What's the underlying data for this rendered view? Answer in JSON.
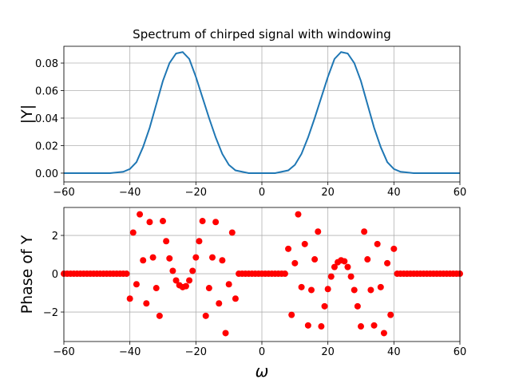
{
  "chart_data": [
    {
      "type": "line",
      "title": "Spectrum of chirped signal with windowing",
      "ylabel": "|Y|",
      "color": "#1f77b4",
      "x": [
        -60,
        -58,
        -56,
        -54,
        -52,
        -50,
        -48,
        -46,
        -44,
        -42,
        -40,
        -38,
        -36,
        -34,
        -32,
        -30,
        -28,
        -26,
        -24,
        -22,
        -20,
        -18,
        -16,
        -14,
        -12,
        -10,
        -8,
        -6,
        -4,
        -2,
        0,
        2,
        4,
        6,
        8,
        10,
        12,
        14,
        16,
        18,
        20,
        22,
        24,
        26,
        28,
        30,
        32,
        34,
        36,
        38,
        40,
        42,
        44,
        46,
        48,
        50,
        52,
        54,
        56,
        58,
        60
      ],
      "values": [
        0,
        0,
        0,
        0,
        0,
        0,
        0,
        0,
        0.0005,
        0.001,
        0.003,
        0.008,
        0.019,
        0.033,
        0.05,
        0.067,
        0.08,
        0.087,
        0.088,
        0.083,
        0.07,
        0.055,
        0.04,
        0.026,
        0.014,
        0.006,
        0.002,
        0.001,
        0,
        0,
        0,
        0,
        0,
        0.001,
        0.002,
        0.006,
        0.014,
        0.026,
        0.04,
        0.055,
        0.07,
        0.083,
        0.088,
        0.087,
        0.08,
        0.067,
        0.05,
        0.033,
        0.019,
        0.008,
        0.003,
        0.001,
        0.0005,
        0,
        0,
        0,
        0,
        0,
        0,
        0,
        0
      ],
      "xlim": [
        -60,
        60
      ],
      "xticks": [
        {
          "value": -60,
          "label": "−60"
        },
        {
          "value": -40,
          "label": "−40"
        },
        {
          "value": -20,
          "label": "−20"
        },
        0,
        20,
        40,
        60
      ],
      "ylim": [
        -0.0064,
        0.0922
      ],
      "yticks": [
        {
          "value": 0,
          "label": "0.00"
        },
        {
          "value": 0.02,
          "label": "0.02"
        },
        {
          "value": 0.04,
          "label": "0.04"
        },
        {
          "value": 0.06,
          "label": "0.06"
        },
        {
          "value": 0.08,
          "label": "0.08"
        }
      ],
      "grid": true
    },
    {
      "type": "scatter",
      "ylabel": "Phase of Y",
      "xlabel": "ω",
      "color": "#ff0000",
      "x": [
        -60,
        -59,
        -58,
        -57,
        -56,
        -55,
        -54,
        -53,
        -52,
        -51,
        -50,
        -49,
        -48,
        -47,
        -46,
        -45,
        -44,
        -43,
        -42,
        -41,
        -40,
        -39,
        -38,
        -37,
        -36,
        -35,
        -34,
        -33,
        -32,
        -31,
        -30,
        -29,
        -28,
        -27,
        -26,
        -25,
        -24,
        -23,
        -22,
        -21,
        -20,
        -19,
        -18,
        -17,
        -16,
        -15,
        -14,
        -13,
        -12,
        -11,
        -10,
        -9,
        -8,
        -7,
        -6,
        -5,
        -4,
        -3,
        -2,
        -1,
        0,
        1,
        2,
        3,
        4,
        5,
        6,
        7,
        8,
        9,
        10,
        11,
        12,
        13,
        14,
        15,
        16,
        17,
        18,
        19,
        20,
        21,
        22,
        23,
        24,
        25,
        26,
        27,
        28,
        29,
        30,
        31,
        32,
        33,
        34,
        35,
        36,
        37,
        38,
        39,
        40,
        41,
        42,
        43,
        44,
        45,
        46,
        47,
        48,
        49,
        50,
        51,
        52,
        53,
        54,
        55,
        56,
        57,
        58,
        59,
        60
      ],
      "values": [
        0,
        0,
        0,
        0,
        0,
        0,
        0,
        0,
        0,
        0,
        0,
        0,
        0,
        0,
        0,
        0,
        0,
        0,
        0,
        0,
        -1.3,
        2.15,
        -0.55,
        3.1,
        0.7,
        -1.55,
        2.7,
        0.85,
        -0.75,
        -2.2,
        2.75,
        1.7,
        0.8,
        0.15,
        -0.35,
        -0.6,
        -0.7,
        -0.65,
        -0.35,
        0.15,
        0.85,
        1.7,
        2.75,
        -2.2,
        -0.75,
        0.85,
        2.7,
        -1.55,
        0.7,
        -3.1,
        -0.55,
        2.15,
        -1.3,
        0,
        0,
        0,
        0,
        0,
        0,
        0,
        0,
        0,
        0,
        0,
        0,
        0,
        0,
        0,
        1.3,
        -2.15,
        0.55,
        3.1,
        -0.7,
        1.55,
        -2.7,
        -0.85,
        0.75,
        2.2,
        -2.75,
        -1.7,
        -0.8,
        -0.15,
        0.35,
        0.6,
        0.7,
        0.65,
        0.35,
        -0.15,
        -0.85,
        -1.7,
        -2.75,
        2.2,
        0.75,
        -0.85,
        -2.7,
        1.55,
        -0.7,
        -3.1,
        0.55,
        -2.15,
        1.3,
        0,
        0,
        0,
        0,
        0,
        0,
        0,
        0,
        0,
        0,
        0,
        0,
        0,
        0,
        0,
        0,
        0,
        0,
        0,
        0
      ],
      "xlim": [
        -60,
        60
      ],
      "xticks": [
        {
          "value": -60,
          "label": "−60"
        },
        {
          "value": -40,
          "label": "−40"
        },
        {
          "value": -20,
          "label": "−20"
        },
        0,
        20,
        40,
        60
      ],
      "ylim": [
        -3.54,
        3.46
      ],
      "yticks": [
        {
          "value": -2,
          "label": "−2"
        },
        0,
        2
      ],
      "grid": true
    }
  ]
}
